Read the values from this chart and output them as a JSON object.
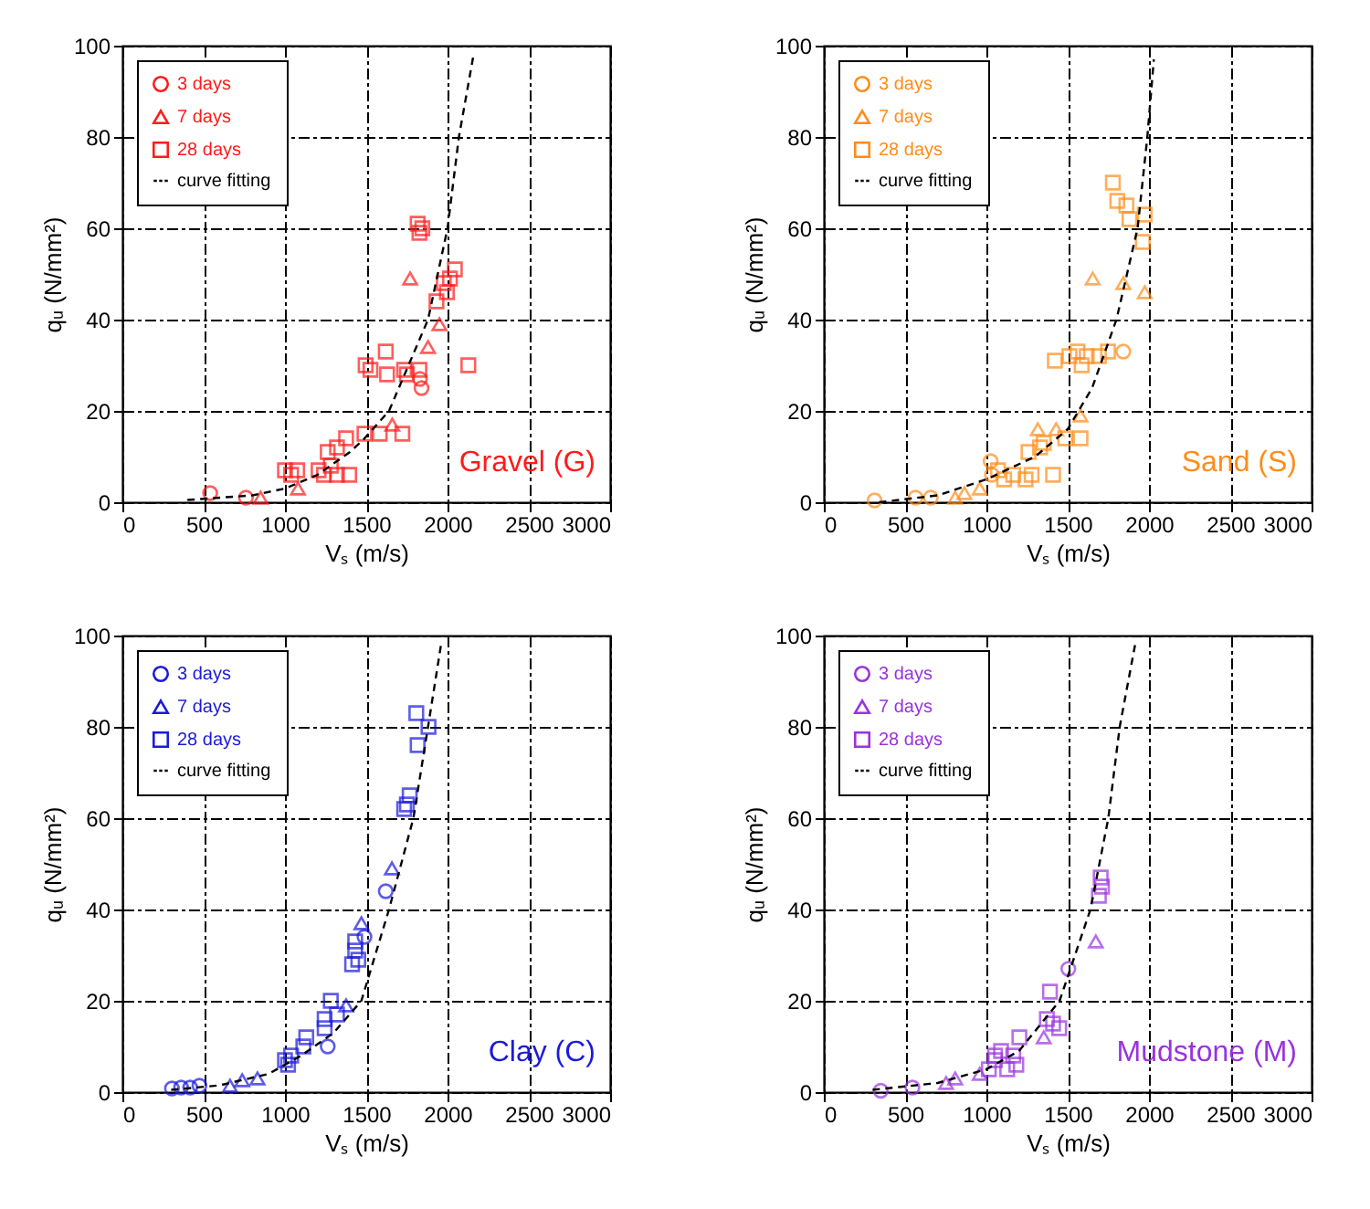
{
  "chart_data": [
    {
      "type": "scatter",
      "xlabel": "Vₛ (m/s)",
      "ylabel": "qᵤ (N/mm²)",
      "xlim": [
        0,
        3000
      ],
      "ylim": [
        0,
        100
      ],
      "xticks": [
        0,
        500,
        1000,
        1500,
        2000,
        2500,
        3000
      ],
      "yticks": [
        0,
        20,
        40,
        60,
        80,
        100
      ],
      "grid": true,
      "legend": "top left",
      "annotations": [
        "Gravel (G)"
      ],
      "series": [
        {
          "name": "3 days",
          "color": "#ff1a1a",
          "marker": "circle",
          "x": [
            540,
            760,
            1840,
            1830
          ],
          "values": [
            2,
            1,
            25,
            27
          ]
        },
        {
          "name": "7 days",
          "color": "#ff1a1a",
          "marker": "triangle",
          "x": [
            850,
            1080,
            1660,
            1770,
            1880,
            1950
          ],
          "values": [
            1,
            3,
            17,
            49,
            34,
            39
          ]
        },
        {
          "name": "28 days",
          "color": "#ff1a1a",
          "marker": "square",
          "x": [
            1816,
            1827,
            1845,
            2045,
            2015,
            1977,
            1996,
            1932,
            2128,
            1496,
            1526,
            1620,
            1628,
            1733,
            1827,
            1750,
            1489,
            1583,
            1722,
            1376,
            1263,
            1320,
            1282,
            1207,
            1038,
            1000,
            1075,
            1240,
            1320,
            1395
          ],
          "values": [
            61,
            59,
            60,
            51,
            49,
            48,
            46,
            44,
            30,
            30,
            29,
            33,
            28,
            29,
            29,
            28,
            15,
            15,
            15,
            14,
            11,
            12,
            8,
            7,
            6,
            7,
            7,
            6,
            6,
            6
          ]
        },
        {
          "name": "curve fitting",
          "type": "line",
          "color": "#000000",
          "line_style": "dashed",
          "marker": "none",
          "x": [
            400,
            800,
            1000,
            1200,
            1400,
            1490,
            1640,
            1880,
            2000,
            2070,
            2160
          ],
          "values": [
            0.5,
            1.5,
            3,
            6,
            11,
            14,
            20,
            40,
            60,
            80,
            98
          ]
        }
      ]
    },
    {
      "type": "scatter",
      "xlabel": "Vₛ (m/s)",
      "ylabel": "qᵤ (N/mm²)",
      "xlim": [
        0,
        3000
      ],
      "ylim": [
        0,
        100
      ],
      "xticks": [
        0,
        500,
        1000,
        1500,
        2000,
        2500,
        3000
      ],
      "yticks": [
        0,
        20,
        40,
        60,
        80,
        100
      ],
      "grid": true,
      "legend": "top left",
      "annotations": [
        "Sand (S)"
      ],
      "series": [
        {
          "name": "3 days",
          "color": "#ff8c1a",
          "marker": "circle",
          "x": [
            312,
            564,
            658,
            1026,
            1034,
            1842
          ],
          "values": [
            0.4,
            1,
            1,
            9,
            6,
            33
          ]
        },
        {
          "name": "7 days",
          "color": "#ff8c1a",
          "marker": "triangle",
          "x": [
            808,
            865,
            959,
            1316,
            1429,
            1579,
            1654,
            1842,
            1974
          ],
          "values": [
            1,
            2,
            3,
            16,
            16,
            19,
            49,
            48,
            46
          ]
        },
        {
          "name": "28 days",
          "color": "#ff8c1a",
          "marker": "square",
          "x": [
            1778,
            1805,
            1861,
            1974,
            1880,
            1962,
            1421,
            1511,
            1560,
            1586,
            1692,
            1748,
            1617,
            1485,
            1579,
            1353,
            1259,
            1330,
            1071,
            1165,
            1278,
            1410,
            1109,
            1241
          ],
          "values": [
            70,
            66,
            65,
            63,
            62,
            57,
            31,
            32,
            33,
            30,
            32,
            33,
            32,
            14,
            14,
            13,
            11,
            12,
            7,
            6,
            6,
            6,
            5,
            5
          ]
        },
        {
          "name": "curve fitting",
          "type": "line",
          "color": "#000000",
          "line_style": "dashed",
          "marker": "none",
          "x": [
            340,
            700,
            1000,
            1300,
            1500,
            1650,
            1800,
            1930,
            1990,
            2030
          ],
          "values": [
            0,
            1.5,
            5,
            10,
            16,
            25,
            40,
            60,
            80,
            97
          ]
        }
      ]
    },
    {
      "type": "scatter",
      "xlabel": "Vₛ (m/s)",
      "ylabel": "qᵤ (N/mm²)",
      "xlim": [
        0,
        3000
      ],
      "ylim": [
        0,
        100
      ],
      "xticks": [
        0,
        500,
        1000,
        1500,
        2000,
        2500,
        3000
      ],
      "yticks": [
        0,
        20,
        40,
        60,
        80,
        100
      ],
      "grid": true,
      "legend": "top left",
      "annotations": [
        "Clay (C)"
      ],
      "series": [
        {
          "name": "3 days",
          "color": "#1a1adb",
          "marker": "circle",
          "x": [
            305,
            361,
            417,
            474,
            1263,
            1620,
            1489
          ],
          "values": [
            0.8,
            1,
            1,
            1.4,
            10,
            44,
            34
          ]
        },
        {
          "name": "7 days",
          "color": "#1a1adb",
          "marker": "triangle",
          "x": [
            662,
            737,
            831,
            1658,
            1376,
            1470
          ],
          "values": [
            1.4,
            2.6,
            3,
            49,
            19,
            37
          ]
        },
        {
          "name": "28 days",
          "color": "#1a1adb",
          "marker": "square",
          "x": [
            1808,
            1883,
            1816,
            1767,
            1733,
            1750,
            1432,
            1432,
            1451,
            1413,
            1282,
            1320,
            1244,
            1131,
            1113,
            1000,
            1019,
            1244,
            1038
          ],
          "values": [
            83,
            80,
            76,
            65,
            62,
            63,
            33,
            31,
            29,
            28,
            20,
            17,
            16,
            12,
            10,
            7,
            6,
            14,
            8
          ]
        },
        {
          "name": "curve fitting",
          "type": "line",
          "color": "#000000",
          "line_style": "dashed",
          "marker": "none",
          "x": [
            300,
            600,
            900,
            1100,
            1300,
            1470,
            1640,
            1790,
            1880,
            1960
          ],
          "values": [
            0.5,
            1.5,
            4,
            8,
            13,
            20,
            40,
            60,
            80,
            98
          ]
        }
      ]
    },
    {
      "type": "scatter",
      "xlabel": "Vₛ (m/s)",
      "ylabel": "qᵤ (N/mm²)",
      "xlim": [
        0,
        3000
      ],
      "ylim": [
        0,
        100
      ],
      "xticks": [
        0,
        500,
        1000,
        1500,
        2000,
        2500,
        3000
      ],
      "yticks": [
        0,
        20,
        40,
        60,
        80,
        100
      ],
      "grid": true,
      "legend": "top left",
      "annotations": [
        "Mudstone (M)"
      ],
      "series": [
        {
          "name": "3 days",
          "color": "#9933dd",
          "marker": "circle",
          "x": [
            350,
            545,
            1504
          ],
          "values": [
            0.3,
            1,
            27
          ]
        },
        {
          "name": "7 days",
          "color": "#9933dd",
          "marker": "triangle",
          "x": [
            752,
            808,
            959,
            1353,
            1673
          ],
          "values": [
            2,
            3,
            4,
            12,
            33
          ]
        },
        {
          "name": "28 days",
          "color": "#9933dd",
          "marker": "square",
          "x": [
            1703,
            1711,
            1692,
            1391,
            1410,
            1372,
            1448,
            1203,
            1090,
            1053,
            1165,
            1015,
            1128,
            1184,
            1053
          ],
          "values": [
            47,
            45,
            43,
            22,
            15,
            16,
            14,
            12,
            9,
            7,
            8,
            5,
            5,
            6,
            8
          ]
        },
        {
          "name": "curve fitting",
          "type": "line",
          "color": "#000000",
          "line_style": "dashed",
          "marker": "none",
          "x": [
            300,
            700,
            1000,
            1200,
            1450,
            1640,
            1750,
            1820,
            1920
          ],
          "values": [
            0.5,
            2,
            5,
            9,
            20,
            40,
            60,
            80,
            99
          ]
        }
      ]
    }
  ]
}
